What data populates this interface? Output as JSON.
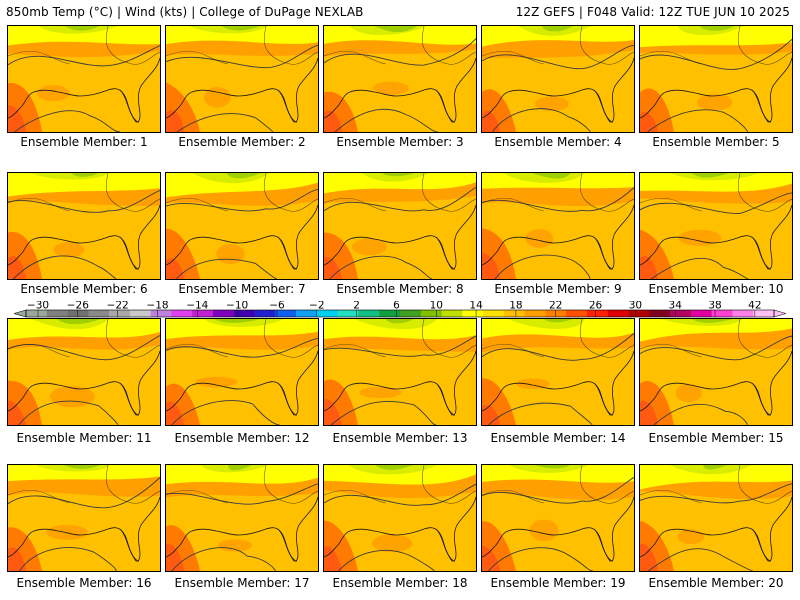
{
  "header": {
    "left": "850mb Temp (°C) | Wind (kts) | College of DuPage NEXLAB",
    "right": "12Z GEFS | F048 Valid: 12Z TUE JUN 10 2025"
  },
  "panels": [
    {
      "label": "Ensemble Member: 1",
      "member": 1
    },
    {
      "label": "Ensemble Member: 2",
      "member": 2
    },
    {
      "label": "Ensemble Member: 3",
      "member": 3
    },
    {
      "label": "Ensemble Member: 4",
      "member": 4
    },
    {
      "label": "Ensemble Member: 5",
      "member": 5
    },
    {
      "label": "Ensemble Member: 6",
      "member": 6
    },
    {
      "label": "Ensemble Member: 7",
      "member": 7
    },
    {
      "label": "Ensemble Member: 8",
      "member": 8
    },
    {
      "label": "Ensemble Member: 9",
      "member": 9
    },
    {
      "label": "Ensemble Member: 10",
      "member": 10
    },
    {
      "label": "Ensemble Member: 11",
      "member": 11
    },
    {
      "label": "Ensemble Member: 12",
      "member": 12
    },
    {
      "label": "Ensemble Member: 13",
      "member": 13
    },
    {
      "label": "Ensemble Member: 14",
      "member": 14
    },
    {
      "label": "Ensemble Member: 15",
      "member": 15
    },
    {
      "label": "Ensemble Member: 16",
      "member": 16
    },
    {
      "label": "Ensemble Member: 17",
      "member": 17
    },
    {
      "label": "Ensemble Member: 18",
      "member": 18
    },
    {
      "label": "Ensemble Member: 19",
      "member": 19
    },
    {
      "label": "Ensemble Member: 20",
      "member": 20
    }
  ],
  "colorbar": {
    "labels": [
      "-30",
      "-26",
      "-22",
      "-18",
      "-14",
      "-10",
      "-6",
      "-2",
      "2",
      "6",
      "10",
      "14",
      "18",
      "22",
      "26",
      "30",
      "34",
      "38",
      "42"
    ],
    "colors": [
      "#9aa89a",
      "#808080",
      "#707070",
      "#8a8a8a",
      "#a8a8a8",
      "#c8c8c8",
      "#c080e0",
      "#e040f0",
      "#c020d0",
      "#8000c0",
      "#4000b0",
      "#2020d0",
      "#1060f0",
      "#10a0f0",
      "#00d0f0",
      "#20e0c0",
      "#10c080",
      "#10a040",
      "#40a020",
      "#80c000",
      "#c0e000",
      "#ffff00",
      "#ffe000",
      "#ffc000",
      "#ffa000",
      "#ff8000",
      "#ff5000",
      "#ff2000",
      "#e00000",
      "#b00000",
      "#800020",
      "#b00060",
      "#e000a0",
      "#ff40d0",
      "#ff80e8",
      "#ffc0f8"
    ]
  },
  "colors": {
    "cold": "#a0d000",
    "cool": "#d8ec00",
    "mild": "#ffff00",
    "warm": "#ffc000",
    "warmer": "#ffa000",
    "hot": "#ff7a00",
    "hottest": "#ff5a10",
    "coast": "#1a1a1a",
    "isobar": "#3c3c3c"
  }
}
